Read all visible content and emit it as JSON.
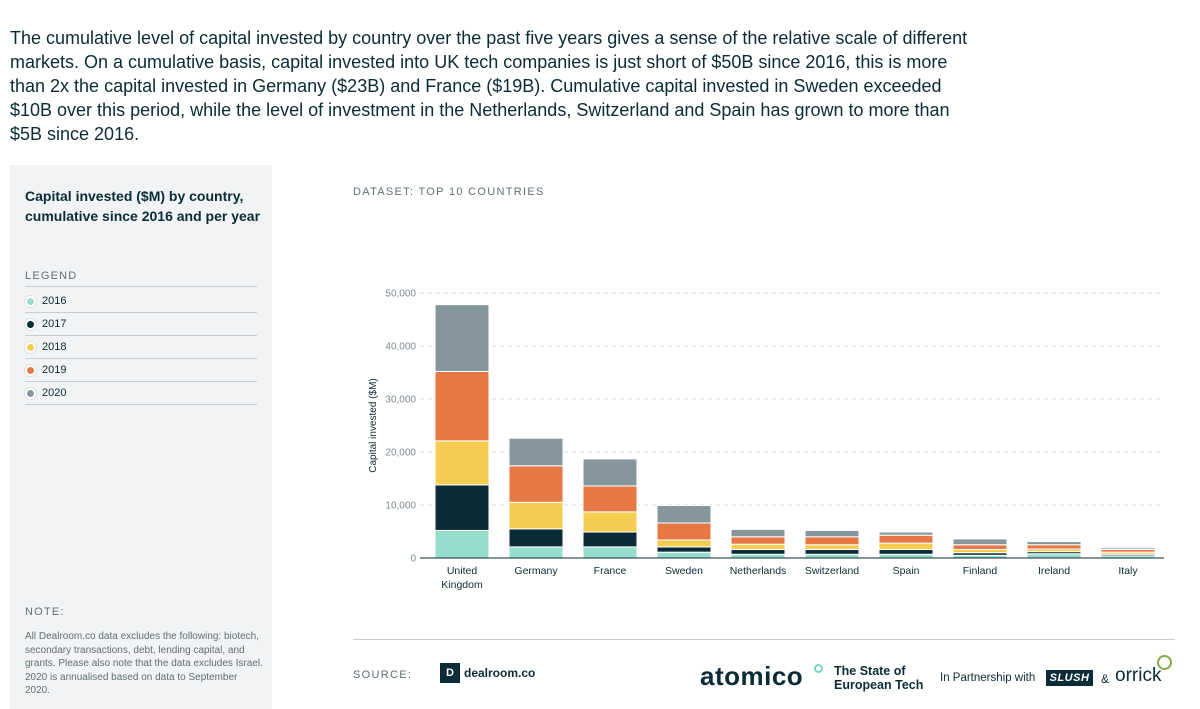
{
  "intro": "The cumulative level of capital invested by country over the past five years gives a sense of the relative scale of different markets. On a cumulative basis, capital invested into UK tech companies is just short of $50B since 2016, this is more than 2x the capital invested in Germany ($23B) and France ($19B). Cumulative capital invested in Sweden exceeded $10B over this period, while the level of investment in the Netherlands, Switzerland and Spain has grown to more than $5B since 2016.",
  "sidebar": {
    "title": "Capital invested ($M) by country, cumulative since 2016 and per year",
    "legend_label": "LEGEND",
    "legend": [
      {
        "label": "2016",
        "color": "#97dccd"
      },
      {
        "label": "2017",
        "color": "#0b2b37"
      },
      {
        "label": "2018",
        "color": "#f4cc4f"
      },
      {
        "label": "2019",
        "color": "#e67845"
      },
      {
        "label": "2020",
        "color": "#85979d"
      }
    ],
    "note_label": "NOTE:",
    "note": "All Dealroom.co data excludes the following: biotech, secondary transactions, debt, lending capital, and grants. Please also note that the data excludes Israel. 2020 is annualised based on data to September 2020."
  },
  "dataset_label": "DATASET: TOP 10 COUNTRIES",
  "chart_data": {
    "type": "bar",
    "stacked": true,
    "title": "Capital invested ($M) by country, cumulative since 2016 and per year",
    "ylabel": "Capital invested ($M)",
    "xlabel": "",
    "ylim": [
      0,
      50000
    ],
    "yticks": [
      0,
      10000,
      20000,
      30000,
      40000,
      50000
    ],
    "ytick_labels": [
      "0",
      "10,000",
      "20,000",
      "30,000",
      "40,000",
      "50,000"
    ],
    "grid": true,
    "legend_position": "left panel",
    "categories": [
      [
        "United",
        "Kingdom"
      ],
      [
        "Germany"
      ],
      [
        "France"
      ],
      [
        "Sweden"
      ],
      [
        "Netherlands"
      ],
      [
        "Switzerland"
      ],
      [
        "Spain"
      ],
      [
        "Finland"
      ],
      [
        "Ireland"
      ],
      [
        "Italy"
      ]
    ],
    "series": [
      {
        "name": "2016",
        "color": "#97dccd",
        "values": [
          5200,
          2100,
          2100,
          1100,
          700,
          700,
          700,
          500,
          800,
          400
        ]
      },
      {
        "name": "2017",
        "color": "#0b2b37",
        "values": [
          8600,
          3400,
          2800,
          1000,
          900,
          900,
          900,
          500,
          400,
          300
        ]
      },
      {
        "name": "2018",
        "color": "#f4cc4f",
        "values": [
          8300,
          5000,
          3800,
          1300,
          1000,
          900,
          1200,
          600,
          500,
          400
        ]
      },
      {
        "name": "2019",
        "color": "#e67845",
        "values": [
          13100,
          6900,
          4900,
          3200,
          1400,
          1500,
          1500,
          900,
          800,
          500
        ]
      },
      {
        "name": "2020",
        "color": "#85979d",
        "values": [
          12600,
          5200,
          5100,
          3300,
          1400,
          1200,
          600,
          1100,
          600,
          300
        ]
      }
    ]
  },
  "footer": {
    "source_label": "SOURCE:",
    "dealroom_mark": "D",
    "dealroom": "dealroom.co",
    "atomico": "atomico",
    "report_line1": "The State of",
    "report_line2": "European Tech",
    "partnership": "In Partnership with",
    "slush": "SLUSH",
    "amp": "&",
    "orrick": "orrick"
  }
}
